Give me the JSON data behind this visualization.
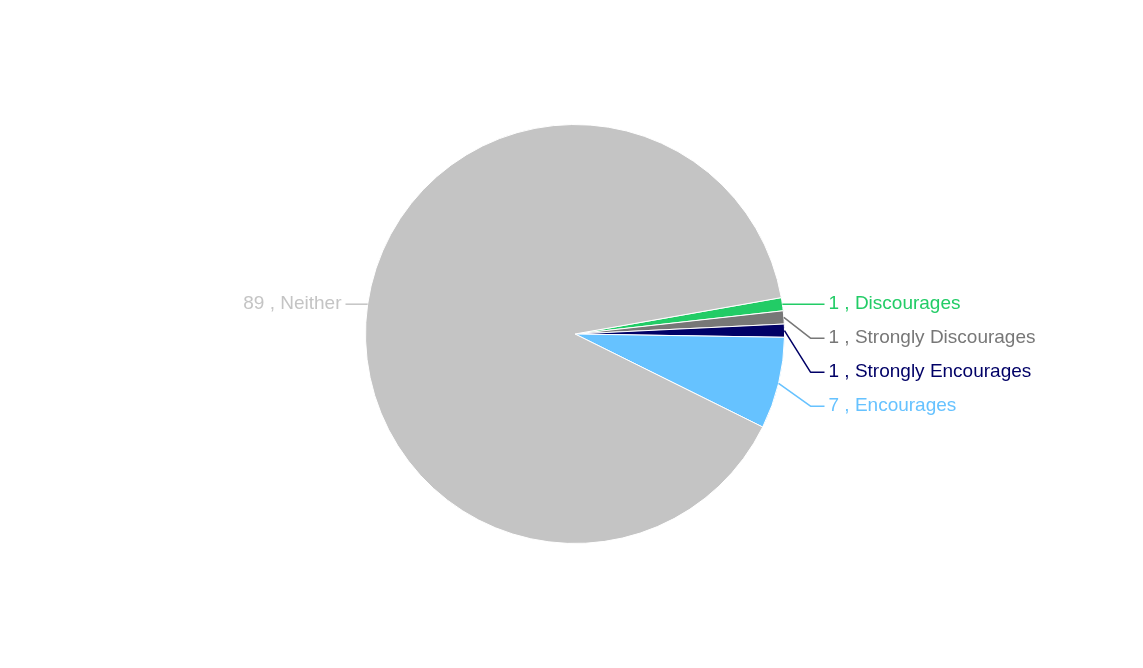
{
  "chart_data": {
    "type": "pie",
    "categories": [
      "Discourages",
      "Strongly Discourages",
      "Strongly Encourages",
      "Encourages",
      "Neither"
    ],
    "values": [
      1,
      1,
      1,
      7,
      89
    ],
    "colors": [
      "#22cc66",
      "#777777",
      "#000066",
      "#66c2ff",
      "#c4c4c4"
    ],
    "value_labels": [
      "1 ,",
      "1 ,",
      "1 ,",
      "7 ,",
      "89 ,"
    ],
    "legend": false
  }
}
